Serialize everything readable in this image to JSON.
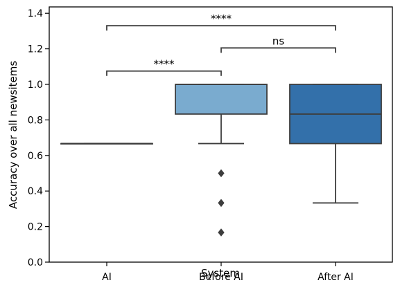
{
  "chart_data": {
    "type": "box",
    "title": "",
    "xlabel": "System",
    "ylabel": "Accuracy over all newsitems",
    "ylim": [
      0,
      1.43
    ],
    "yticks": [
      0.0,
      0.2,
      0.4,
      0.6,
      0.8,
      1.0,
      1.2,
      1.4
    ],
    "ytick_labels": [
      "0.0",
      "0.2",
      "0.4",
      "0.6",
      "0.8",
      "1.0",
      "1.2",
      "1.4"
    ],
    "grid": false,
    "legend": "none",
    "categories": [
      "AI",
      "Before AI",
      "After AI"
    ],
    "boxes": [
      {
        "category": "AI",
        "q1": 0.667,
        "median": 0.667,
        "q3": 0.667,
        "whisker_low": 0.667,
        "whisker_high": 0.667,
        "outliers": [],
        "color": "#6e97b8"
      },
      {
        "category": "Before AI",
        "q1": 0.833,
        "median": 1.0,
        "q3": 1.0,
        "whisker_low": 0.667,
        "whisker_high": 1.0,
        "outliers": [
          0.5,
          0.333,
          0.167
        ],
        "color": "#7aabcf"
      },
      {
        "category": "After AI",
        "q1": 0.667,
        "median": 0.833,
        "q3": 1.0,
        "whisker_low": 0.333,
        "whisker_high": 1.0,
        "outliers": [],
        "color": "#3370aa"
      }
    ],
    "annotations": [
      {
        "from": "AI",
        "to": "Before AI",
        "y": 1.075,
        "label": "****"
      },
      {
        "from": "Before AI",
        "to": "After AI",
        "y": 1.205,
        "label": "ns"
      },
      {
        "from": "AI",
        "to": "After AI",
        "y": 1.33,
        "label": "****"
      }
    ]
  }
}
